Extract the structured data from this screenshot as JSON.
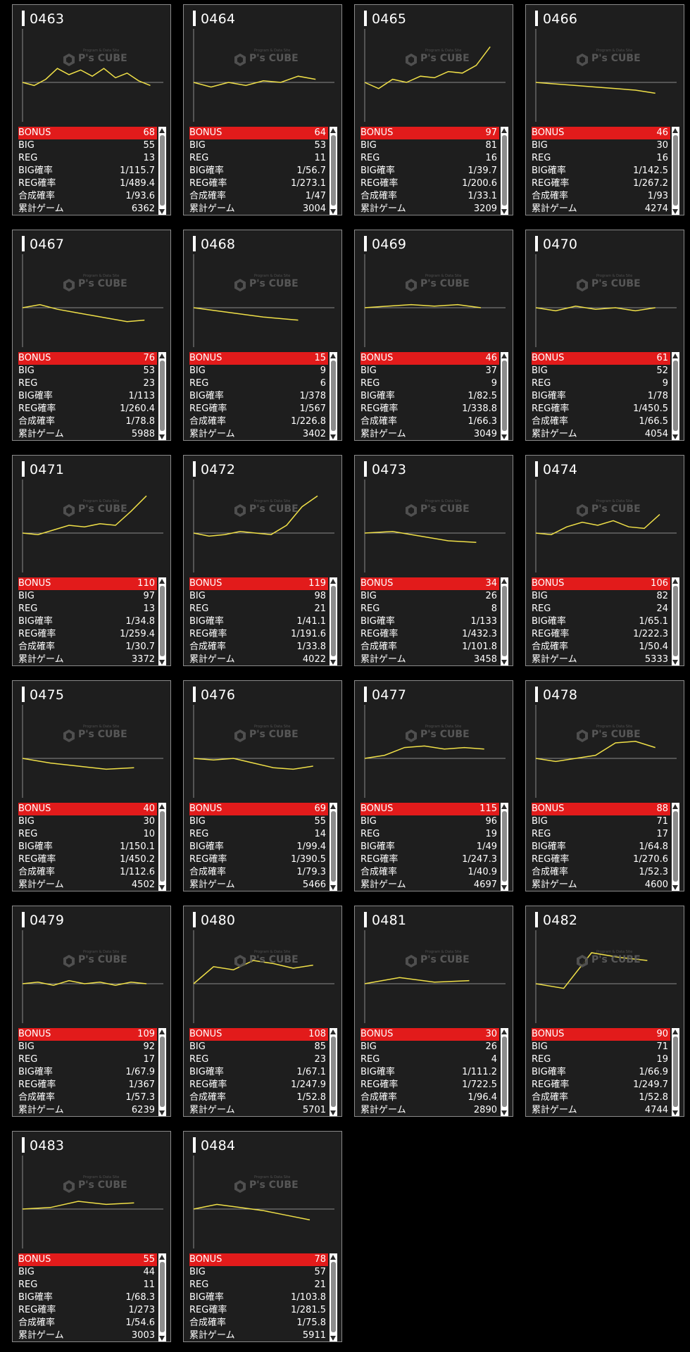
{
  "watermark": {
    "text": "P's CUBE",
    "small_text": "Program & Data Site"
  },
  "labels": {
    "bonus": "BONUS",
    "big": "BIG",
    "reg": "REG",
    "big_rate": "BIG確率",
    "reg_rate": "REG確率",
    "total_rate": "合成確率",
    "games": "累計ゲーム"
  },
  "colors": {
    "bonus_bar": "#e21b1b",
    "graph_line": "#f0e048",
    "baseline": "#8a8a8a",
    "card_bg": "#1e1e1e"
  },
  "machines": [
    {
      "number": "0463",
      "bonus": "68",
      "big": "55",
      "reg": "13",
      "big_rate": "1/115.7",
      "reg_rate": "1/489.4",
      "total_rate": "1/93.6",
      "games": "6362",
      "trend": [
        0,
        -4,
        4,
        18,
        10,
        16,
        8,
        18,
        6,
        12,
        2,
        -4
      ]
    },
    {
      "number": "0464",
      "bonus": "64",
      "big": "53",
      "reg": "11",
      "big_rate": "1/56.7",
      "reg_rate": "1/273.1",
      "total_rate": "1/47",
      "games": "3004",
      "trend": [
        0,
        -6,
        0,
        -4,
        2,
        0,
        8,
        4
      ]
    },
    {
      "number": "0465",
      "bonus": "97",
      "big": "81",
      "reg": "16",
      "big_rate": "1/39.7",
      "reg_rate": "1/200.6",
      "total_rate": "1/33.1",
      "games": "3209",
      "trend": [
        0,
        -8,
        4,
        0,
        8,
        6,
        14,
        12,
        22,
        46
      ]
    },
    {
      "number": "0466",
      "bonus": "46",
      "big": "30",
      "reg": "16",
      "big_rate": "1/142.5",
      "reg_rate": "1/267.2",
      "total_rate": "1/93",
      "games": "4274",
      "trend": [
        0,
        -2,
        -4,
        -6,
        -8,
        -10,
        -14
      ]
    },
    {
      "number": "0467",
      "bonus": "76",
      "big": "53",
      "reg": "23",
      "big_rate": "1/113",
      "reg_rate": "1/260.4",
      "total_rate": "1/78.8",
      "games": "5988",
      "trend": [
        0,
        4,
        -2,
        -6,
        -10,
        -14,
        -18,
        -16
      ]
    },
    {
      "number": "0468",
      "bonus": "15",
      "big": "9",
      "reg": "6",
      "big_rate": "1/378",
      "reg_rate": "1/567",
      "total_rate": "1/226.8",
      "games": "3402",
      "trend": [
        0,
        -6,
        -12,
        -16
      ]
    },
    {
      "number": "0469",
      "bonus": "46",
      "big": "37",
      "reg": "9",
      "big_rate": "1/82.5",
      "reg_rate": "1/338.8",
      "total_rate": "1/66.3",
      "games": "3049",
      "trend": [
        0,
        2,
        4,
        2,
        4,
        0
      ]
    },
    {
      "number": "0470",
      "bonus": "61",
      "big": "52",
      "reg": "9",
      "big_rate": "1/78",
      "reg_rate": "1/450.5",
      "total_rate": "1/66.5",
      "games": "4054",
      "trend": [
        0,
        -4,
        2,
        -2,
        0,
        -4,
        0
      ]
    },
    {
      "number": "0471",
      "bonus": "110",
      "big": "97",
      "reg": "13",
      "big_rate": "1/34.8",
      "reg_rate": "1/259.4",
      "total_rate": "1/30.7",
      "games": "3372",
      "trend": [
        0,
        -2,
        4,
        10,
        8,
        12,
        10,
        28,
        48
      ]
    },
    {
      "number": "0472",
      "bonus": "119",
      "big": "98",
      "reg": "21",
      "big_rate": "1/41.1",
      "reg_rate": "1/191.6",
      "total_rate": "1/33.8",
      "games": "4022",
      "trend": [
        0,
        -4,
        -2,
        2,
        0,
        -2,
        10,
        34,
        48
      ]
    },
    {
      "number": "0473",
      "bonus": "34",
      "big": "26",
      "reg": "8",
      "big_rate": "1/133",
      "reg_rate": "1/432.3",
      "total_rate": "1/101.8",
      "games": "3458",
      "trend": [
        0,
        2,
        -4,
        -10,
        -12
      ]
    },
    {
      "number": "0474",
      "bonus": "106",
      "big": "82",
      "reg": "24",
      "big_rate": "1/65.1",
      "reg_rate": "1/222.3",
      "total_rate": "1/50.4",
      "games": "5333",
      "trend": [
        0,
        -2,
        8,
        14,
        10,
        16,
        8,
        6,
        24
      ]
    },
    {
      "number": "0475",
      "bonus": "40",
      "big": "30",
      "reg": "10",
      "big_rate": "1/150.1",
      "reg_rate": "1/450.2",
      "total_rate": "1/112.6",
      "games": "4502",
      "trend": [
        0,
        -6,
        -10,
        -14,
        -12
      ]
    },
    {
      "number": "0476",
      "bonus": "69",
      "big": "55",
      "reg": "14",
      "big_rate": "1/99.4",
      "reg_rate": "1/390.5",
      "total_rate": "1/79.3",
      "games": "5466",
      "trend": [
        0,
        -2,
        0,
        -6,
        -12,
        -14,
        -10
      ]
    },
    {
      "number": "0477",
      "bonus": "115",
      "big": "96",
      "reg": "19",
      "big_rate": "1/49",
      "reg_rate": "1/247.3",
      "total_rate": "1/40.9",
      "games": "4697",
      "trend": [
        0,
        4,
        14,
        16,
        12,
        14,
        12
      ]
    },
    {
      "number": "0478",
      "bonus": "88",
      "big": "71",
      "reg": "17",
      "big_rate": "1/64.8",
      "reg_rate": "1/270.6",
      "total_rate": "1/52.3",
      "games": "4600",
      "trend": [
        0,
        -4,
        0,
        4,
        20,
        22,
        14
      ]
    },
    {
      "number": "0479",
      "bonus": "109",
      "big": "92",
      "reg": "17",
      "big_rate": "1/67.9",
      "reg_rate": "1/367",
      "total_rate": "1/57.3",
      "games": "6239",
      "trend": [
        0,
        2,
        -2,
        4,
        0,
        2,
        -2,
        2,
        0
      ]
    },
    {
      "number": "0480",
      "bonus": "108",
      "big": "85",
      "reg": "23",
      "big_rate": "1/67.1",
      "reg_rate": "1/247.9",
      "total_rate": "1/52.8",
      "games": "5701",
      "trend": [
        0,
        22,
        18,
        30,
        26,
        20,
        24
      ]
    },
    {
      "number": "0481",
      "bonus": "30",
      "big": "26",
      "reg": "4",
      "big_rate": "1/111.2",
      "reg_rate": "1/722.5",
      "total_rate": "1/96.4",
      "games": "2890",
      "trend": [
        0,
        8,
        2,
        4
      ]
    },
    {
      "number": "0482",
      "bonus": "90",
      "big": "71",
      "reg": "19",
      "big_rate": "1/66.9",
      "reg_rate": "1/249.7",
      "total_rate": "1/52.8",
      "games": "4744",
      "trend": [
        0,
        -6,
        40,
        34,
        30
      ]
    },
    {
      "number": "0483",
      "bonus": "55",
      "big": "44",
      "reg": "11",
      "big_rate": "1/68.3",
      "reg_rate": "1/273",
      "total_rate": "1/54.6",
      "games": "3003",
      "trend": [
        0,
        2,
        10,
        6,
        8
      ]
    },
    {
      "number": "0484",
      "bonus": "78",
      "big": "57",
      "reg": "21",
      "big_rate": "1/103.8",
      "reg_rate": "1/281.5",
      "total_rate": "1/75.8",
      "games": "5911",
      "trend": [
        0,
        6,
        2,
        -2,
        -8,
        -14
      ]
    }
  ]
}
